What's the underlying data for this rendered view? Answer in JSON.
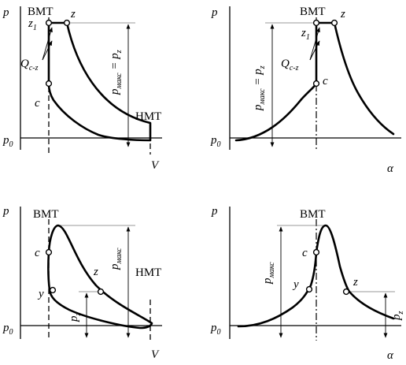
{
  "labels": {
    "p": "p",
    "p0_main": "p",
    "p0_sub": "0",
    "V": "V",
    "alpha": "α",
    "vmt": "ВМТ",
    "nmt": "НМТ",
    "z": "z",
    "z1_main": "z",
    "z1_sub": "1",
    "c": "c",
    "y": "y",
    "Q_main": "Q",
    "Q_sub": "c-z",
    "pmax_main": "p",
    "pmax_sub": "макс",
    "eq_pz": "= p",
    "pz_sub": "z",
    "pz_main": "p"
  }
}
